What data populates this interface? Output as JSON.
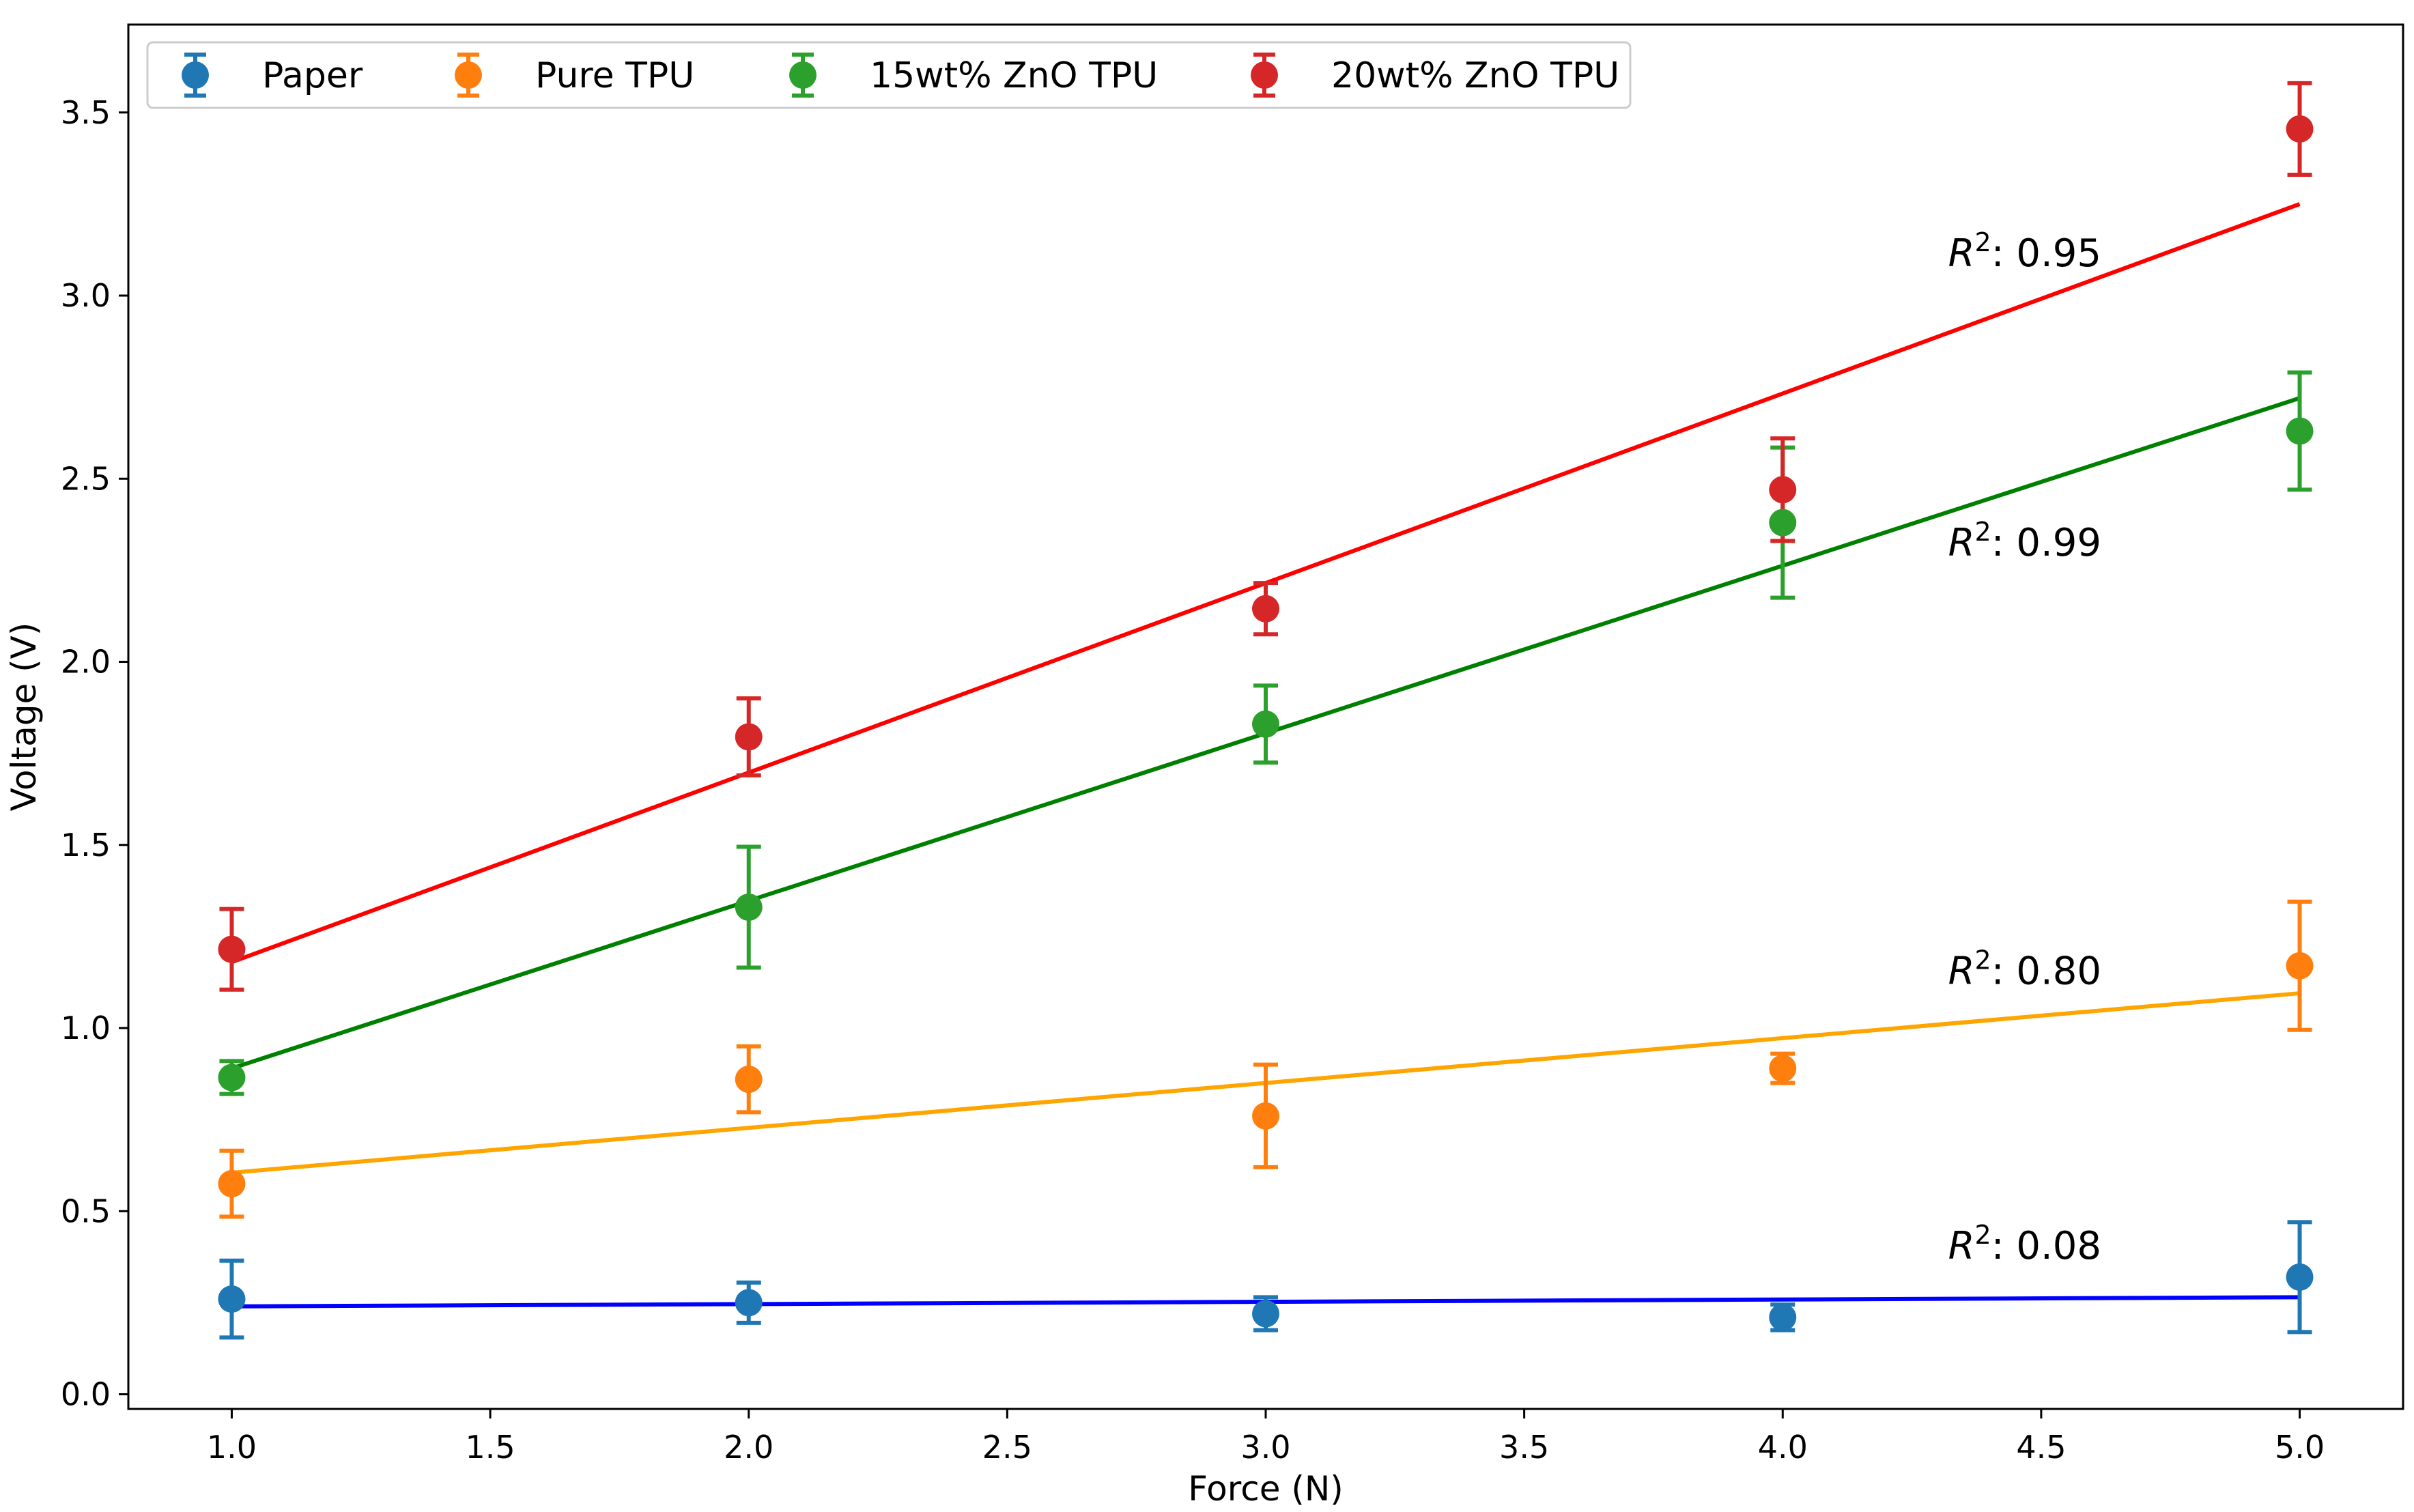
{
  "chart_data": {
    "type": "scatter",
    "title": "",
    "xlabel": "Force (N)",
    "ylabel": "Voltage (V)",
    "xlim": [
      0.8,
      5.2
    ],
    "ylim": [
      -0.04,
      3.74
    ],
    "xticks": [
      1.0,
      1.5,
      2.0,
      2.5,
      3.0,
      3.5,
      4.0,
      4.5,
      5.0
    ],
    "xtick_labels": [
      "1.0",
      "1.5",
      "2.0",
      "2.5",
      "3.0",
      "3.5",
      "4.0",
      "4.5",
      "5.0"
    ],
    "yticks": [
      0.0,
      0.5,
      1.0,
      1.5,
      2.0,
      2.5,
      3.0,
      3.5
    ],
    "ytick_labels": [
      "0.0",
      "0.5",
      "1.0",
      "1.5",
      "2.0",
      "2.5",
      "3.0",
      "3.5"
    ],
    "grid": false,
    "legend_position": "top-left",
    "x": [
      1,
      2,
      3,
      4,
      5
    ],
    "r2_prefix": "R",
    "r2_sup": "2",
    "series": [
      {
        "name": "Paper",
        "color": "#1f77b4",
        "fit_color": "#0000ff",
        "values": [
          0.26,
          0.25,
          0.22,
          0.21,
          0.32
        ],
        "errors": [
          0.105,
          0.055,
          0.045,
          0.035,
          0.15
        ],
        "fit": [
          0.24,
          0.265
        ],
        "r2": ": 0.08",
        "r2_at": [
          4.32,
          0.37
        ]
      },
      {
        "name": "Pure TPU",
        "color": "#ff7f0e",
        "fit_color": "#ffa500",
        "values": [
          0.575,
          0.86,
          0.76,
          0.89,
          1.17
        ],
        "errors": [
          0.09,
          0.09,
          0.14,
          0.04,
          0.175
        ],
        "fit": [
          0.605,
          1.095
        ],
        "r2": ": 0.80",
        "r2_at": [
          4.32,
          1.12
        ]
      },
      {
        "name": "15wt% ZnO TPU",
        "color": "#2ca02c",
        "fit_color": "#008000",
        "values": [
          0.865,
          1.33,
          1.83,
          2.38,
          2.63
        ],
        "errors": [
          0.045,
          0.165,
          0.105,
          0.205,
          0.16
        ],
        "fit": [
          0.89,
          2.72
        ],
        "r2": ": 0.99",
        "r2_at": [
          4.32,
          2.29
        ]
      },
      {
        "name": "20wt% ZnO TPU",
        "color": "#d62728",
        "fit_color": "#ff0000",
        "values": [
          1.215,
          1.795,
          2.145,
          2.47,
          3.455
        ],
        "errors": [
          0.11,
          0.105,
          0.07,
          0.14,
          0.125
        ],
        "fit": [
          1.18,
          3.25
        ],
        "r2": ": 0.95",
        "r2_at": [
          4.32,
          3.08
        ]
      }
    ]
  }
}
